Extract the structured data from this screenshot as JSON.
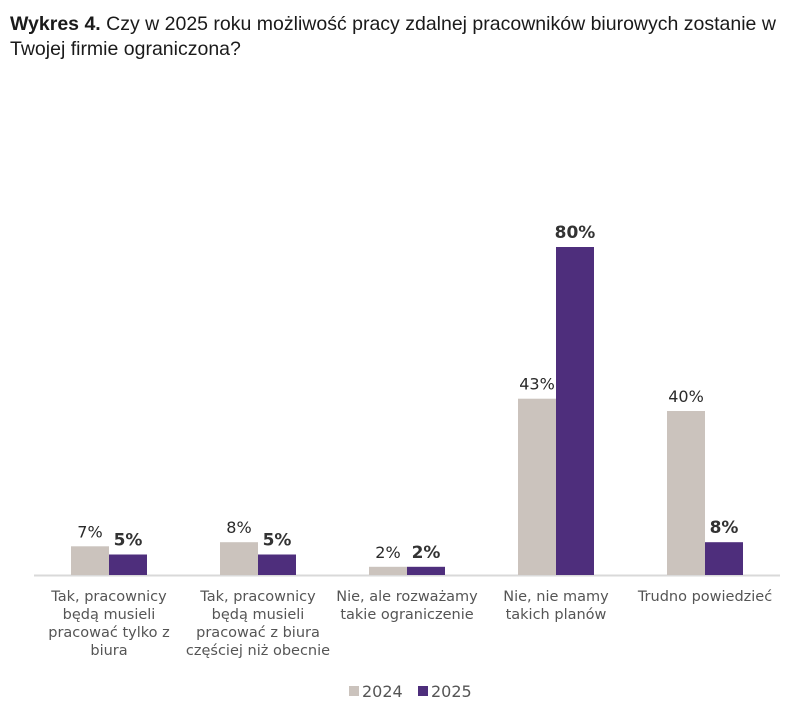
{
  "chart_data": {
    "type": "bar",
    "title_prefix": "Wykres 4.",
    "title": "Czy w 2025 roku możliwość pracy zdalnej pracowników biurowych zostanie w Twojej firmie ograniczona?",
    "categories": [
      [
        "Tak, pracownicy",
        "będą musieli",
        "pracować tylko z",
        "biura"
      ],
      [
        "Tak, pracownicy",
        "będą musieli",
        "pracować z biura",
        "częściej niż obecnie"
      ],
      [
        "Nie, ale rozważamy",
        "takie ograniczenie"
      ],
      [
        "Nie, nie mamy",
        "takich planów"
      ],
      [
        "Trudno powiedzieć"
      ]
    ],
    "series": [
      {
        "name": "2024",
        "color": "#cbc3bd",
        "values": [
          7,
          8,
          2,
          43,
          40
        ],
        "labels": [
          "7%",
          "8%",
          "2%",
          "43%",
          "40%"
        ]
      },
      {
        "name": "2025",
        "color": "#4e2e7c",
        "values": [
          5,
          5,
          2,
          80,
          8
        ],
        "labels": [
          "5%",
          "5%",
          "2%",
          "80%",
          "8%"
        ]
      }
    ],
    "xlabel": "",
    "ylabel": "",
    "ylim": [
      0,
      80
    ],
    "grid": false,
    "legend": "bottom-center",
    "axis_color": "#d9d9d9"
  }
}
